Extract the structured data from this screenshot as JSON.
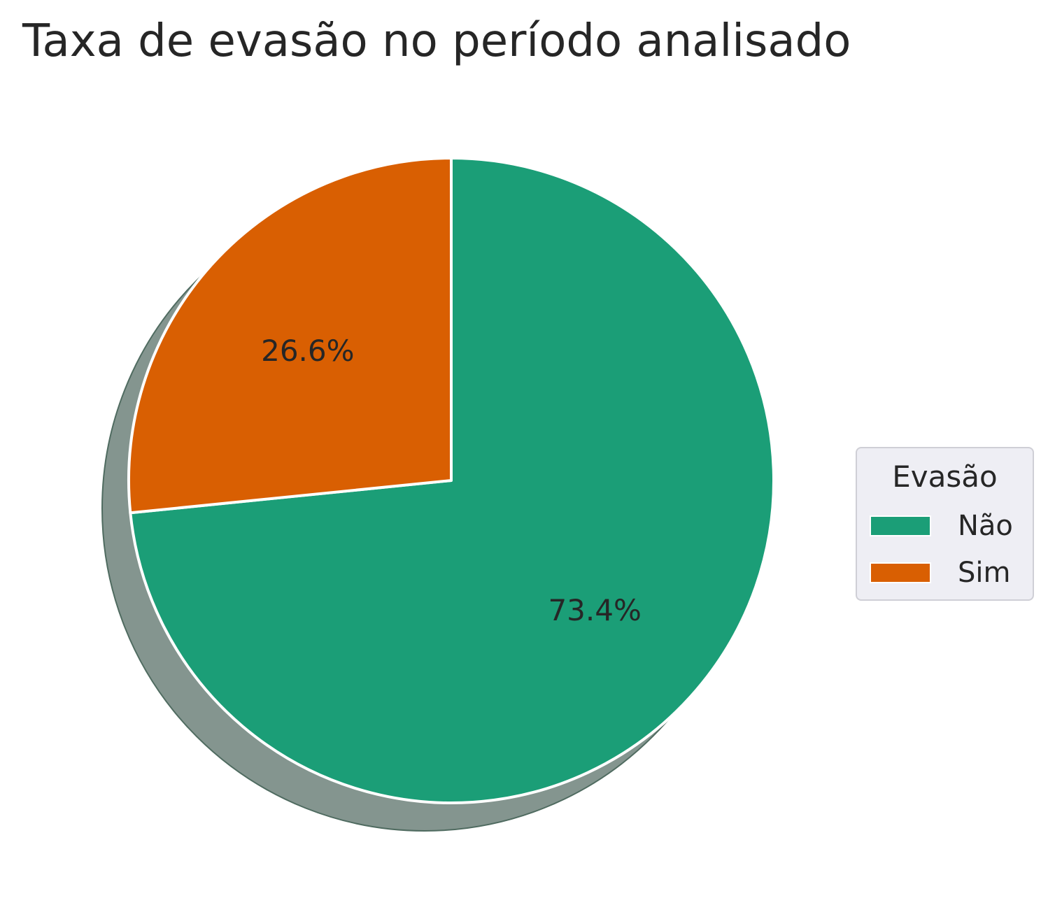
{
  "chart_data": {
    "type": "pie",
    "title": "Taxa de evasão no período analisado",
    "legend_title": "Evasão",
    "legend_position": "right",
    "start_angle_deg": 90,
    "direction": "clockwise",
    "shadow": true,
    "slices": [
      {
        "label": "Não",
        "value": 73.4,
        "display": "73.4%",
        "color": "#1b9e77"
      },
      {
        "label": "Sim",
        "value": 26.6,
        "display": "26.6%",
        "color": "#d95f02"
      }
    ]
  }
}
